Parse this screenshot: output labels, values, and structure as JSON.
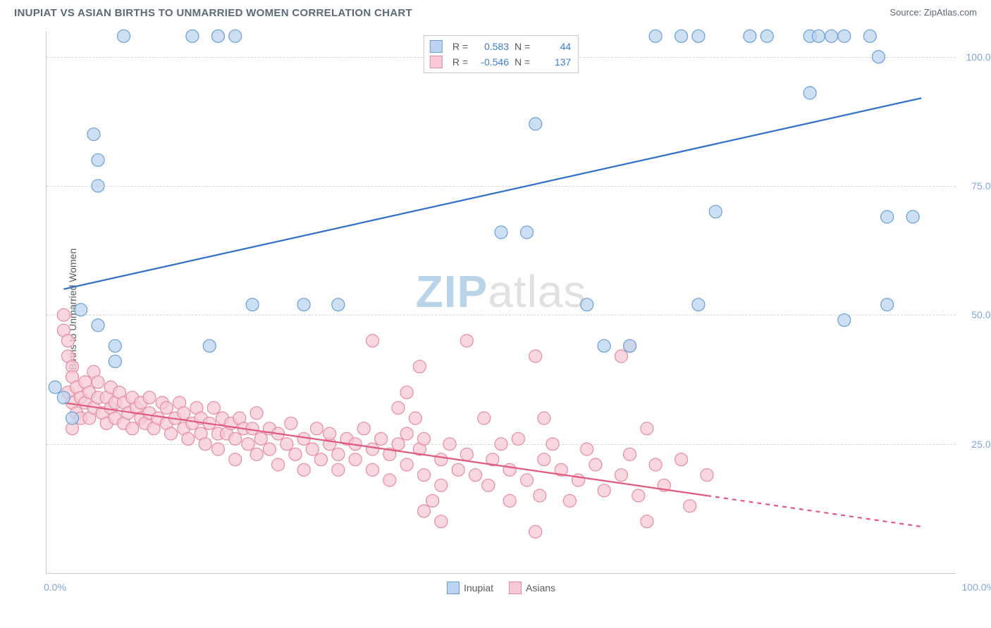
{
  "header": {
    "title": "INUPIAT VS ASIAN BIRTHS TO UNMARRIED WOMEN CORRELATION CHART",
    "source": "Source: ZipAtlas.com"
  },
  "watermark": {
    "part1": "ZIP",
    "part2": "atlas"
  },
  "yaxis": {
    "title": "Births to Unmarried Women",
    "ticks": [
      25.0,
      50.0,
      75.0,
      100.0
    ],
    "tick_labels": [
      "25.0%",
      "50.0%",
      "75.0%",
      "100.0%"
    ],
    "title_fontsize": 14,
    "tick_fontsize": 14,
    "tick_color": "#7ea6d9"
  },
  "xaxis": {
    "ticks": [
      0.0,
      100.0
    ],
    "tick_labels": [
      "0.0%",
      "100.0%"
    ],
    "tick_fontsize": 14,
    "tick_color": "#7ea6d9"
  },
  "ylim": [
    0,
    105
  ],
  "xlim": [
    -2,
    104
  ],
  "grid_color": "#d6d6d6",
  "background_color": "#ffffff",
  "series": [
    {
      "name": "Inupiat",
      "color_fill": "#bcd4ef",
      "color_stroke": "#6a9ed4",
      "marker_opacity": 0.75,
      "marker_radius": 9,
      "line_color": "#2f6fc9",
      "line_width": 2.2,
      "line_dash": "none",
      "r": 0.583,
      "n": 44,
      "trend": {
        "x1": 0,
        "y1": 55,
        "x2": 100,
        "y2": 92
      },
      "points": [
        [
          7,
          104
        ],
        [
          15,
          104
        ],
        [
          18,
          104
        ],
        [
          20,
          104
        ],
        [
          69,
          104
        ],
        [
          72,
          104
        ],
        [
          74,
          104
        ],
        [
          80,
          104
        ],
        [
          82,
          104
        ],
        [
          87,
          104
        ],
        [
          88,
          104
        ],
        [
          89.5,
          104
        ],
        [
          91,
          104
        ],
        [
          94,
          104
        ],
        [
          95,
          100
        ],
        [
          87,
          93
        ],
        [
          3.5,
          85
        ],
        [
          4,
          80
        ],
        [
          4,
          75
        ],
        [
          55,
          87
        ],
        [
          76,
          70
        ],
        [
          51,
          66
        ],
        [
          54,
          66
        ],
        [
          96,
          69
        ],
        [
          99,
          69
        ],
        [
          63,
          44
        ],
        [
          66,
          44
        ],
        [
          74,
          52
        ],
        [
          96,
          52
        ],
        [
          2,
          51
        ],
        [
          4,
          48
        ],
        [
          6,
          44
        ],
        [
          6,
          41
        ],
        [
          -1,
          36
        ],
        [
          0,
          34
        ],
        [
          1,
          30
        ],
        [
          22,
          52
        ],
        [
          28,
          52
        ],
        [
          32,
          52
        ],
        [
          17,
          44
        ],
        [
          61,
          52
        ],
        [
          91,
          49
        ]
      ]
    },
    {
      "name": "Asians",
      "color_fill": "#f6c9d3",
      "color_stroke": "#e58ba1",
      "marker_opacity": 0.75,
      "marker_radius": 9,
      "line_color": "#e15a7d",
      "line_width": 2.2,
      "line_dash_after_x": 75,
      "r": -0.546,
      "n": 137,
      "trend": {
        "x1": 0,
        "y1": 33,
        "x2": 100,
        "y2": 9
      },
      "points": [
        [
          0,
          50
        ],
        [
          0,
          47
        ],
        [
          0.5,
          45
        ],
        [
          0.5,
          42
        ],
        [
          1,
          40
        ],
        [
          1,
          38
        ],
        [
          0.5,
          35
        ],
        [
          1,
          33
        ],
        [
          1.5,
          31
        ],
        [
          2,
          30
        ],
        [
          1,
          28
        ],
        [
          1.5,
          36
        ],
        [
          2,
          34
        ],
        [
          2.5,
          33
        ],
        [
          2.5,
          37
        ],
        [
          3,
          35
        ],
        [
          3,
          30
        ],
        [
          3.5,
          32
        ],
        [
          3.5,
          39
        ],
        [
          4,
          37
        ],
        [
          4,
          34
        ],
        [
          4.5,
          31
        ],
        [
          5,
          34
        ],
        [
          5,
          29
        ],
        [
          5.5,
          32
        ],
        [
          5.5,
          36
        ],
        [
          6,
          33
        ],
        [
          6,
          30
        ],
        [
          6.5,
          35
        ],
        [
          7,
          33
        ],
        [
          7,
          29
        ],
        [
          7.5,
          31
        ],
        [
          8,
          34
        ],
        [
          8,
          28
        ],
        [
          8.5,
          32
        ],
        [
          9,
          30
        ],
        [
          9,
          33
        ],
        [
          9.5,
          29
        ],
        [
          10,
          31
        ],
        [
          10,
          34
        ],
        [
          10.5,
          28
        ],
        [
          11,
          30
        ],
        [
          11.5,
          33
        ],
        [
          12,
          29
        ],
        [
          12,
          32
        ],
        [
          12.5,
          27
        ],
        [
          13,
          30
        ],
        [
          13.5,
          33
        ],
        [
          14,
          28
        ],
        [
          14,
          31
        ],
        [
          14.5,
          26
        ],
        [
          15,
          29
        ],
        [
          15.5,
          32
        ],
        [
          16,
          27
        ],
        [
          16,
          30
        ],
        [
          16.5,
          25
        ],
        [
          17,
          29
        ],
        [
          17.5,
          32
        ],
        [
          18,
          27
        ],
        [
          18,
          24
        ],
        [
          18.5,
          30
        ],
        [
          19,
          27
        ],
        [
          19.5,
          29
        ],
        [
          20,
          26
        ],
        [
          20,
          22
        ],
        [
          20.5,
          30
        ],
        [
          21,
          28
        ],
        [
          21.5,
          25
        ],
        [
          22,
          28
        ],
        [
          22.5,
          23
        ],
        [
          22.5,
          31
        ],
        [
          23,
          26
        ],
        [
          24,
          24
        ],
        [
          24,
          28
        ],
        [
          25,
          21
        ],
        [
          25,
          27
        ],
        [
          26,
          25
        ],
        [
          26.5,
          29
        ],
        [
          27,
          23
        ],
        [
          28,
          26
        ],
        [
          28,
          20
        ],
        [
          29,
          24
        ],
        [
          29.5,
          28
        ],
        [
          30,
          22
        ],
        [
          31,
          25
        ],
        [
          31,
          27
        ],
        [
          32,
          23
        ],
        [
          32,
          20
        ],
        [
          33,
          26
        ],
        [
          34,
          22
        ],
        [
          34,
          25
        ],
        [
          35,
          28
        ],
        [
          36,
          24
        ],
        [
          36,
          20
        ],
        [
          37,
          26
        ],
        [
          38,
          23
        ],
        [
          38,
          18
        ],
        [
          39,
          25
        ],
        [
          40,
          21
        ],
        [
          40,
          27
        ],
        [
          41,
          30
        ],
        [
          41.5,
          24
        ],
        [
          42,
          19
        ],
        [
          42,
          26
        ],
        [
          36,
          45
        ],
        [
          39,
          32
        ],
        [
          40,
          35
        ],
        [
          41.5,
          40
        ],
        [
          44,
          22
        ],
        [
          44,
          17
        ],
        [
          45,
          25
        ],
        [
          46,
          20
        ],
        [
          42,
          12
        ],
        [
          43,
          14
        ],
        [
          44,
          10
        ],
        [
          47,
          23
        ],
        [
          47,
          45
        ],
        [
          48,
          19
        ],
        [
          49,
          30
        ],
        [
          49.5,
          17
        ],
        [
          50,
          22
        ],
        [
          51,
          25
        ],
        [
          52,
          14
        ],
        [
          52,
          20
        ],
        [
          53,
          26
        ],
        [
          54,
          18
        ],
        [
          55,
          8
        ],
        [
          55.5,
          15
        ],
        [
          56,
          22
        ],
        [
          57,
          25
        ],
        [
          58,
          20
        ],
        [
          59,
          14
        ],
        [
          60,
          18
        ],
        [
          61,
          24
        ],
        [
          62,
          21
        ],
        [
          63,
          16
        ],
        [
          55,
          42
        ],
        [
          56,
          30
        ],
        [
          65,
          19
        ],
        [
          66,
          23
        ],
        [
          67,
          15
        ],
        [
          68,
          10
        ],
        [
          69,
          21
        ],
        [
          65,
          42
        ],
        [
          66,
          44
        ],
        [
          68,
          28
        ],
        [
          70,
          17
        ],
        [
          72,
          22
        ],
        [
          73,
          13
        ],
        [
          75,
          19
        ]
      ]
    }
  ],
  "stats_legend": {
    "r_label": "R =",
    "n_label": "N ="
  },
  "bottom_legend": {
    "items": [
      "Inupiat",
      "Asians"
    ]
  }
}
